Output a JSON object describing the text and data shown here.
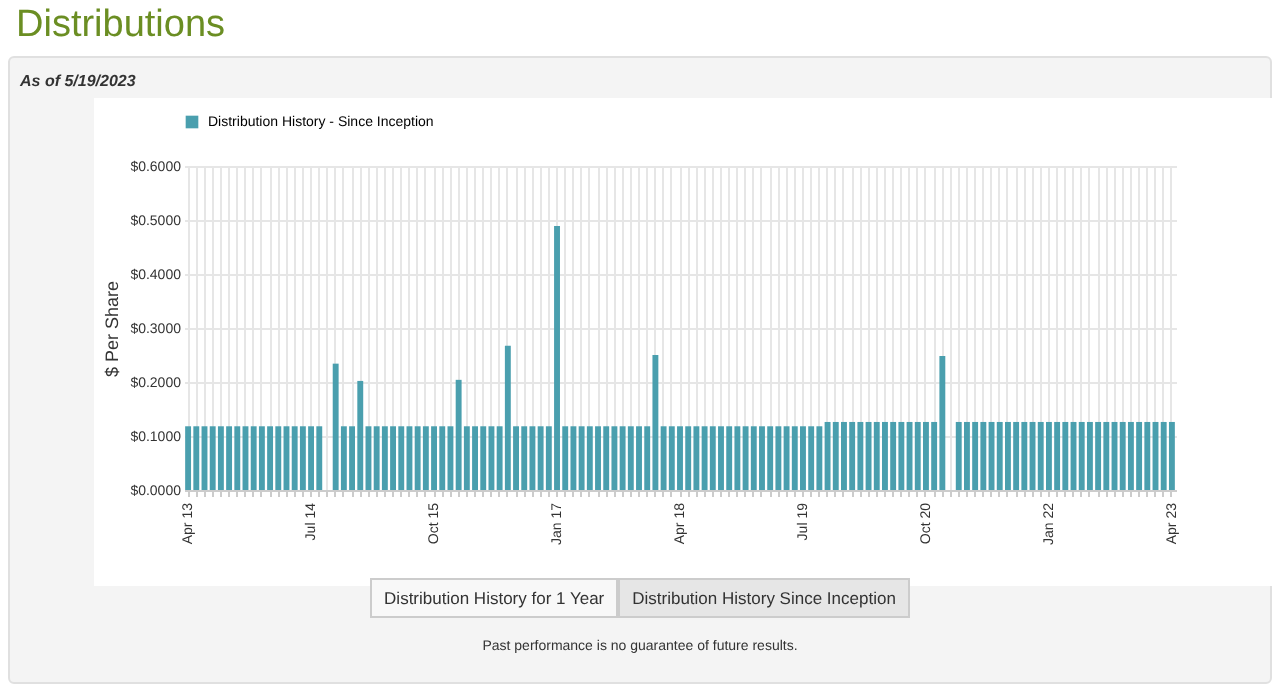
{
  "chart_data": {
    "type": "bar",
    "title": "Distributions",
    "subtitle": "As of 5/19/2023",
    "ylabel": "$ Per Share",
    "categories": [
      "Apr 13",
      null,
      null,
      null,
      null,
      null,
      null,
      null,
      null,
      null,
      null,
      null,
      null,
      null,
      null,
      "Jul 14",
      null,
      null,
      null,
      null,
      null,
      null,
      null,
      null,
      null,
      null,
      null,
      null,
      null,
      null,
      "Oct 15",
      null,
      null,
      null,
      null,
      null,
      null,
      null,
      null,
      null,
      null,
      null,
      null,
      null,
      null,
      "Jan 17",
      null,
      null,
      null,
      null,
      null,
      null,
      null,
      null,
      null,
      null,
      null,
      null,
      null,
      null,
      "Apr 18",
      null,
      null,
      null,
      null,
      null,
      null,
      null,
      null,
      null,
      null,
      null,
      null,
      null,
      null,
      "Jul 19",
      null,
      null,
      null,
      null,
      null,
      null,
      null,
      null,
      null,
      null,
      null,
      null,
      null,
      null,
      "Oct 20",
      null,
      null,
      null,
      null,
      null,
      null,
      null,
      null,
      null,
      null,
      null,
      null,
      null,
      null,
      "Jan 22",
      null,
      null,
      null,
      null,
      null,
      null,
      null,
      null,
      null,
      null,
      null,
      null,
      null,
      null,
      "Apr 23"
    ],
    "series": [
      {
        "name": "Distribution History - Since Inception",
        "color": "#4a9fae",
        "values": [
          0.118,
          0.118,
          0.118,
          0.118,
          0.118,
          0.118,
          0.118,
          0.118,
          0.118,
          0.118,
          0.118,
          0.118,
          0.118,
          0.118,
          0.118,
          0.118,
          0.118,
          null,
          0.234,
          0.118,
          0.118,
          0.202,
          0.118,
          0.118,
          0.118,
          0.118,
          0.118,
          0.118,
          0.118,
          0.118,
          0.118,
          0.118,
          0.118,
          0.204,
          0.118,
          0.118,
          0.118,
          0.118,
          0.118,
          0.267,
          0.118,
          0.118,
          0.118,
          0.118,
          0.118,
          0.489,
          0.118,
          0.118,
          0.118,
          0.118,
          0.118,
          0.118,
          0.118,
          0.118,
          0.118,
          0.118,
          0.118,
          0.25,
          0.118,
          0.118,
          0.118,
          0.118,
          0.118,
          0.118,
          0.118,
          0.118,
          0.118,
          0.118,
          0.118,
          0.118,
          0.118,
          0.118,
          0.118,
          0.118,
          0.118,
          0.118,
          0.118,
          0.118,
          0.126,
          0.126,
          0.126,
          0.126,
          0.126,
          0.126,
          0.126,
          0.126,
          0.126,
          0.126,
          0.126,
          0.126,
          0.126,
          0.126,
          0.248,
          null,
          0.126,
          0.126,
          0.126,
          0.126,
          0.126,
          0.126,
          0.126,
          0.126,
          0.126,
          0.126,
          0.126,
          0.126,
          0.126,
          0.126,
          0.126,
          0.126,
          0.126,
          0.126,
          0.126,
          0.126,
          0.126,
          0.126,
          0.126,
          0.126,
          0.126,
          0.126,
          0.126
        ]
      }
    ],
    "ylim": [
      0,
      0.6
    ],
    "yticks": [
      {
        "value": 0,
        "label": "$0.0000"
      },
      {
        "value": 0.1,
        "label": "$0.1000"
      },
      {
        "value": 0.2,
        "label": "$0.2000"
      },
      {
        "value": 0.3,
        "label": "$0.3000"
      },
      {
        "value": 0.4,
        "label": "$0.4000"
      },
      {
        "value": 0.5,
        "label": "$0.5000"
      },
      {
        "value": 0.6,
        "label": "$0.6000"
      }
    ],
    "grid": true,
    "legend": "top",
    "annotations": [
      "Distribution History for 1 Year",
      "Distribution History Since Inception",
      "Past performance is no guarantee of future results."
    ]
  }
}
